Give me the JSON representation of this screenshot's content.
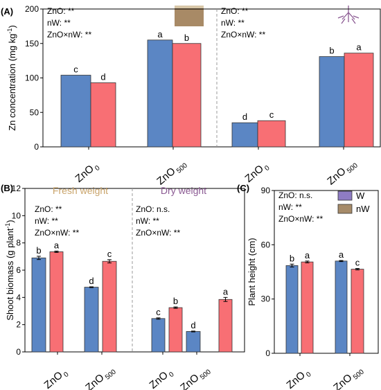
{
  "colors": {
    "W": "#5b86c4",
    "nW": "#f86f74",
    "fresh_title": "#c9a46b",
    "dry_title": "#8b5a93",
    "root": "#8b5a93"
  },
  "chart_data": [
    {
      "id": "A",
      "panel_label": "(A)",
      "type": "bar",
      "ylabel": "Zn concentration (mg kg",
      "ylabel_sup": "-1",
      "ylabel_end": ")",
      "ylim": [
        0,
        200
      ],
      "yticks": [
        "0",
        "50",
        "100",
        "150",
        "200"
      ],
      "stats_left": [
        "ZnO: **",
        "nW: **",
        "ZnO×nW: **"
      ],
      "stats_right": [
        "ZnO: **",
        "nW: **",
        "ZnO×nW: **"
      ],
      "groups": [
        {
          "cat": "ZnO",
          "sub": "0",
          "bars": [
            {
              "series": "W",
              "value": 104,
              "letter": "c"
            },
            {
              "series": "nW",
              "value": 93,
              "letter": "d"
            }
          ]
        },
        {
          "cat": "ZnO",
          "sub": "500",
          "bars": [
            {
              "series": "W",
              "value": 155,
              "letter": "a"
            },
            {
              "series": "nW",
              "value": 150,
              "letter": "b"
            }
          ]
        },
        {
          "cat": "ZnO",
          "sub": "0",
          "bars": [
            {
              "series": "W",
              "value": 35,
              "letter": "d"
            },
            {
              "series": "nW",
              "value": 38,
              "letter": "c"
            }
          ]
        },
        {
          "cat": "ZnO",
          "sub": "500",
          "bars": [
            {
              "series": "W",
              "value": 131,
              "letter": "b"
            },
            {
              "series": "nW",
              "value": 136,
              "letter": "a"
            }
          ]
        }
      ]
    },
    {
      "id": "B",
      "panel_label": "(B)",
      "type": "bar",
      "ylabel": "Shoot biomass (g plant",
      "ylabel_sup": "-1",
      "ylabel_end": ")",
      "ylim": [
        0,
        12
      ],
      "yticks": [
        "0",
        "2",
        "4",
        "6",
        "8",
        "10",
        "12"
      ],
      "subtitle_left": "Fresh weight",
      "subtitle_right": "Dry weight",
      "stats_left": [
        "ZnO: **",
        "nW: **",
        "ZnO×nW: **"
      ],
      "stats_right": [
        "ZnO: n.s.",
        "nW: **",
        "ZnO×nW: **"
      ],
      "groups": [
        {
          "cat": "ZnO",
          "sub": "0",
          "bars": [
            {
              "series": "W",
              "value": 6.9,
              "err": 0.12,
              "letter": "b"
            },
            {
              "series": "nW",
              "value": 7.35,
              "err": 0.05,
              "letter": "a"
            }
          ]
        },
        {
          "cat": "ZnO",
          "sub": "500",
          "bars": [
            {
              "series": "W",
              "value": 4.75,
              "err": 0.03,
              "letter": "d"
            },
            {
              "series": "nW",
              "value": 6.65,
              "err": 0.12,
              "letter": "c"
            }
          ]
        },
        {
          "cat": "ZnO",
          "sub": "0",
          "bars": [
            {
              "series": "W",
              "value": 2.45,
              "err": 0.05,
              "letter": "c"
            },
            {
              "series": "nW",
              "value": 3.25,
              "err": 0.05,
              "letter": "b"
            }
          ]
        },
        {
          "cat": "ZnO",
          "sub": "500",
          "bars": [
            {
              "series": "W",
              "value": 1.5,
              "err": 0.03,
              "letter": "d"
            },
            {
              "series": "nW",
              "value": 3.85,
              "err": 0.15,
              "letter": "a"
            }
          ]
        }
      ]
    },
    {
      "id": "C",
      "panel_label": "(C)",
      "type": "bar",
      "ylabel": "Plant height (cm)",
      "ylim": [
        0,
        90
      ],
      "yticks": [
        "0",
        "30",
        "60",
        "90"
      ],
      "stats": [
        "ZnO: n.s.",
        "nW: **",
        "ZnO×nW: **"
      ],
      "legend": [
        {
          "series": "W",
          "label": "W",
          "color": "#8e7cc3"
        },
        {
          "series": "nW",
          "label": "nW",
          "color": "#a68b69"
        }
      ],
      "groups": [
        {
          "cat": "ZnO",
          "sub": "0",
          "bars": [
            {
              "series": "W",
              "value": 48.5,
              "err": 0.8,
              "letter": "b"
            },
            {
              "series": "nW",
              "value": 50.5,
              "err": 0.5,
              "letter": "a"
            }
          ]
        },
        {
          "cat": "ZnO",
          "sub": "500",
          "bars": [
            {
              "series": "W",
              "value": 51.0,
              "err": 0.3,
              "letter": "a"
            },
            {
              "series": "nW",
              "value": 46.5,
              "err": 0.4,
              "letter": "c"
            }
          ]
        }
      ]
    }
  ]
}
